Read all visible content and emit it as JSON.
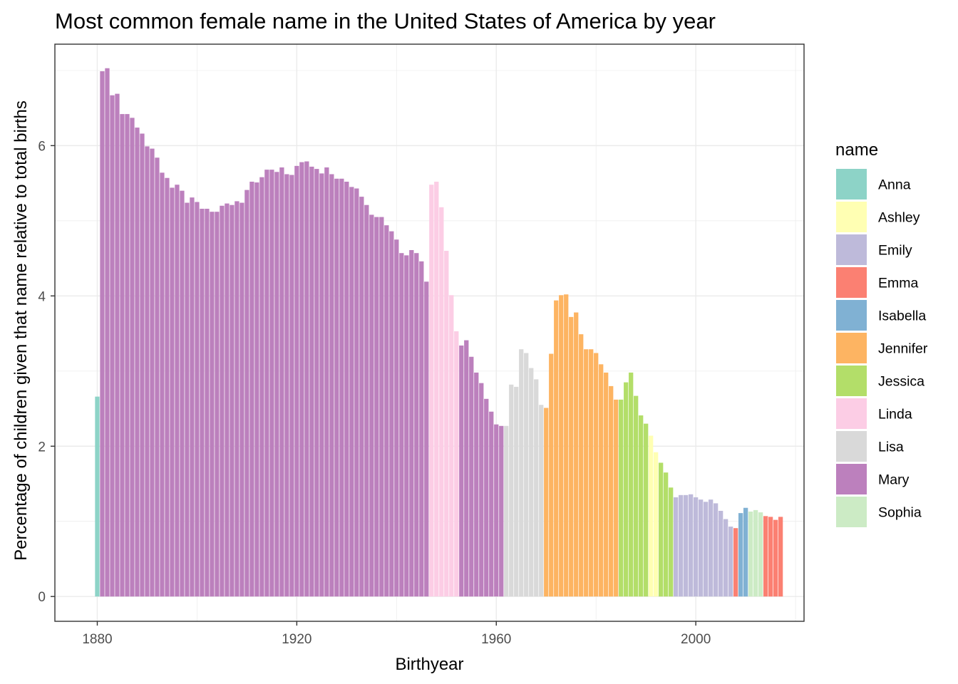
{
  "chart_data": {
    "type": "bar",
    "title": "Most common female name in the United States of America by year",
    "xlabel": "Birthyear",
    "ylabel": "Percentage of children given that name relative to total births",
    "xlim": [
      1871.5,
      2021.7
    ],
    "ylim": [
      -0.33,
      7.35
    ],
    "x_ticks": [
      1880,
      1920,
      1960,
      2000
    ],
    "y_ticks": [
      0,
      2,
      4,
      6
    ],
    "grid": true,
    "legend": {
      "title": "name",
      "position": "right",
      "entries": [
        "Anna",
        "Ashley",
        "Emily",
        "Emma",
        "Isabella",
        "Jennifer",
        "Jessica",
        "Linda",
        "Lisa",
        "Mary",
        "Sophia"
      ]
    },
    "colors": {
      "Anna": "#8DD3C7",
      "Ashley": "#FFFFB3",
      "Emily": "#BEBADA",
      "Emma": "#FB8072",
      "Isabella": "#80B1D3",
      "Jennifer": "#FDB462",
      "Jessica": "#B3DE69",
      "Linda": "#FCCDE5",
      "Lisa": "#D9D9D9",
      "Mary": "#BC80BD",
      "Sophia": "#CCEBC5"
    },
    "series": [
      {
        "name": "Anna",
        "x": [
          1880
        ],
        "values": [
          2.66
        ]
      },
      {
        "name": "Mary",
        "x": [
          1881,
          1882,
          1883,
          1884,
          1885,
          1886,
          1887,
          1888,
          1889,
          1890,
          1891,
          1892,
          1893,
          1894,
          1895,
          1896,
          1897,
          1898,
          1899,
          1900,
          1901,
          1902,
          1903,
          1904,
          1905,
          1906,
          1907,
          1908,
          1909,
          1910,
          1911,
          1912,
          1913,
          1914,
          1915,
          1916,
          1917,
          1918,
          1919,
          1920,
          1921,
          1922,
          1923,
          1924,
          1925,
          1926,
          1927,
          1928,
          1929,
          1930,
          1931,
          1932,
          1933,
          1934,
          1935,
          1936,
          1937,
          1938,
          1939,
          1940,
          1941,
          1942,
          1943,
          1944,
          1945,
          1946
        ],
        "values": [
          6.99,
          7.03,
          6.67,
          6.69,
          6.42,
          6.42,
          6.37,
          6.24,
          6.16,
          5.99,
          5.96,
          5.84,
          5.64,
          5.57,
          5.44,
          5.48,
          5.4,
          5.24,
          5.31,
          5.25,
          5.16,
          5.16,
          5.12,
          5.12,
          5.2,
          5.23,
          5.21,
          5.26,
          5.24,
          5.41,
          5.52,
          5.51,
          5.58,
          5.68,
          5.68,
          5.65,
          5.71,
          5.62,
          5.61,
          5.73,
          5.78,
          5.79,
          5.72,
          5.69,
          5.63,
          5.71,
          5.62,
          5.56,
          5.56,
          5.52,
          5.45,
          5.43,
          5.32,
          5.21,
          5.08,
          5.05,
          5.05,
          4.94,
          4.86,
          4.75,
          4.57,
          4.54,
          4.61,
          4.57,
          4.46,
          4.19
        ]
      },
      {
        "name": "Linda",
        "x": [
          1947,
          1948,
          1949,
          1950,
          1951,
          1952
        ],
        "values": [
          5.48,
          5.52,
          5.18,
          4.6,
          4.01,
          3.53
        ]
      },
      {
        "name": "Mary",
        "x": [
          1953,
          1954,
          1955,
          1956,
          1957,
          1958,
          1959,
          1960,
          1961
        ],
        "values": [
          3.34,
          3.41,
          3.19,
          2.98,
          2.84,
          2.63,
          2.46,
          2.29,
          2.27
        ]
      },
      {
        "name": "Lisa",
        "x": [
          1962,
          1963,
          1964,
          1965,
          1966,
          1967,
          1968,
          1969
        ],
        "values": [
          2.27,
          2.82,
          2.79,
          3.29,
          3.24,
          3.04,
          2.89,
          2.55
        ]
      },
      {
        "name": "Jennifer",
        "x": [
          1970,
          1971,
          1972,
          1973,
          1974,
          1975,
          1976,
          1977,
          1978,
          1979,
          1980,
          1981,
          1982,
          1983,
          1984
        ],
        "values": [
          2.51,
          3.23,
          3.94,
          4.01,
          4.02,
          3.72,
          3.78,
          3.49,
          3.29,
          3.29,
          3.24,
          3.09,
          2.98,
          2.8,
          2.62
        ]
      },
      {
        "name": "Jessica",
        "x": [
          1985,
          1986,
          1987,
          1988,
          1989,
          1990
        ],
        "values": [
          2.62,
          2.85,
          2.98,
          2.67,
          2.41,
          2.3
        ]
      },
      {
        "name": "Ashley",
        "x": [
          1991,
          1992
        ],
        "values": [
          2.14,
          1.92
        ]
      },
      {
        "name": "Jessica",
        "x": [
          1993,
          1994,
          1995
        ],
        "values": [
          1.78,
          1.65,
          1.45
        ]
      },
      {
        "name": "Emily",
        "x": [
          1996,
          1997,
          1998,
          1999,
          2000,
          2001,
          2002,
          2003,
          2004,
          2005,
          2006,
          2007
        ],
        "values": [
          1.32,
          1.35,
          1.35,
          1.36,
          1.32,
          1.29,
          1.26,
          1.29,
          1.24,
          1.14,
          1.03,
          0.93
        ]
      },
      {
        "name": "Emma",
        "x": [
          2008
        ],
        "values": [
          0.91
        ]
      },
      {
        "name": "Isabella",
        "x": [
          2009,
          2010
        ],
        "values": [
          1.11,
          1.18
        ]
      },
      {
        "name": "Sophia",
        "x": [
          2011,
          2012,
          2013
        ],
        "values": [
          1.13,
          1.15,
          1.12
        ]
      },
      {
        "name": "Emma",
        "x": [
          2014,
          2015,
          2016,
          2017
        ],
        "values": [
          1.07,
          1.06,
          1.02,
          1.06
        ]
      }
    ]
  }
}
